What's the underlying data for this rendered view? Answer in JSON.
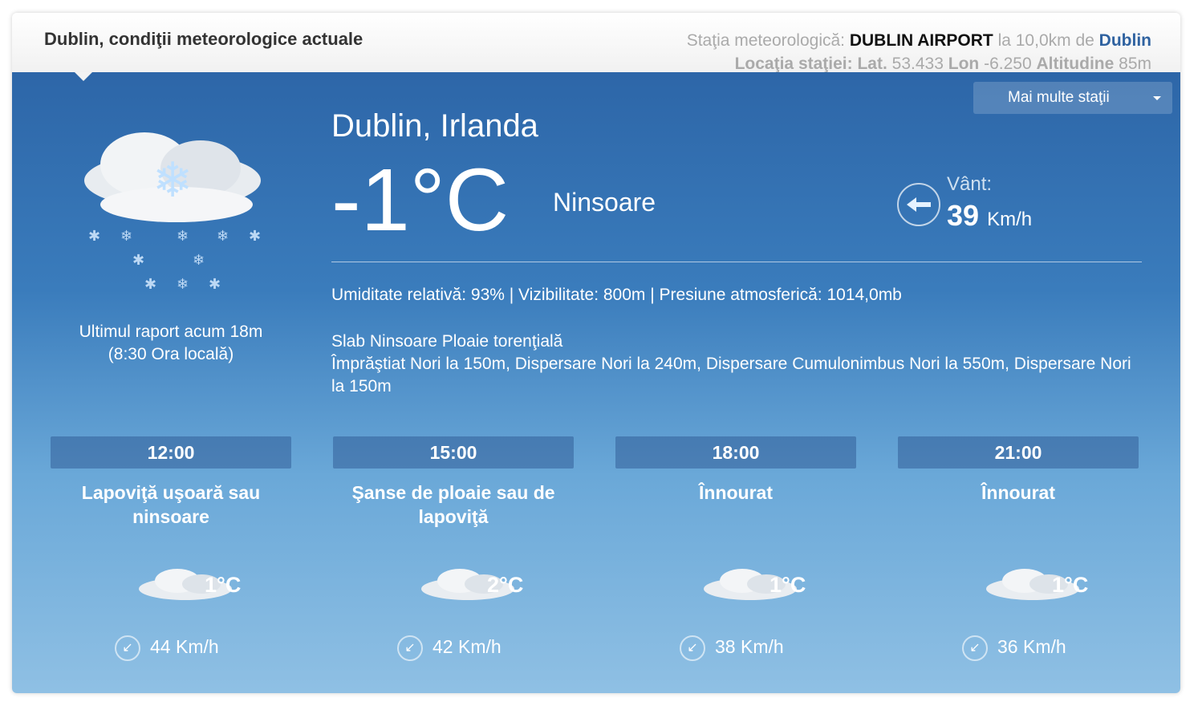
{
  "header": {
    "title": "Dublin, condiţii meteorologice actuale",
    "station_label": "Staţia meteorologică:",
    "station_name": "DUBLIN AIRPORT",
    "distance": "la 10,0km de",
    "city_link": "Dublin",
    "location_label": "Locaţia staţiei:",
    "lat_label": "Lat.",
    "lat": "53.433",
    "lon_label": "Lon",
    "lon": "-6.250",
    "alt_label": "Altitudine",
    "alt": "85m"
  },
  "more_stations": "Mai multe staţii",
  "current": {
    "city": "Dublin, Irlanda",
    "temperature": "-1°C",
    "condition": "Ninsoare",
    "wind_label": "Vânt:",
    "wind_speed": "39",
    "wind_unit": "Km/h",
    "wind_icon": "arrow-left-compass",
    "details": "Umiditate relativă: 93% | Vizibilitate: 800m | Presiune atmosferică: 1014,0mb",
    "desc1": "Slab Ninsoare Ploaie torenţială",
    "desc2": "Împrăştiat Nori la 150m, Dispersare Nori la 240m, Dispersare Cumulonimbus Nori la 550m, Dispersare Nori la 150m",
    "report1": "Ultimul raport acum 18m",
    "report2": "(8:30 Ora locală)",
    "icon": "snow-cloud-icon"
  },
  "forecast": [
    {
      "time": "12:00",
      "label": "Lapoviţă uşoară sau ninsoare",
      "temp": "1°C",
      "wind": "44 Km/h"
    },
    {
      "time": "15:00",
      "label": "Şanse de ploaie sau de lapoviţă",
      "temp": "2°C",
      "wind": "42 Km/h"
    },
    {
      "time": "18:00",
      "label": "Înnourat",
      "temp": "1°C",
      "wind": "38 Km/h"
    },
    {
      "time": "21:00",
      "label": "Înnourat",
      "temp": "1°C",
      "wind": "36 Km/h"
    }
  ]
}
